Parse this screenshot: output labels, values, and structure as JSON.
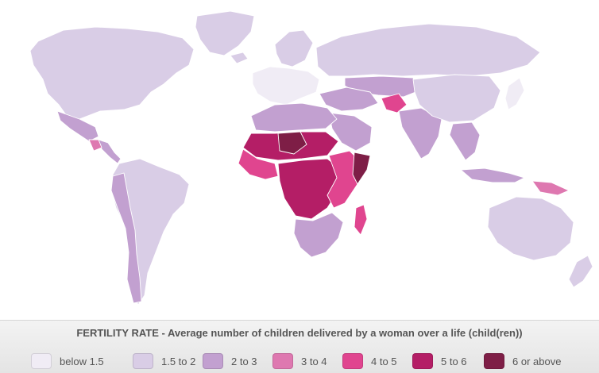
{
  "legend": {
    "title": "FERTILITY RATE - Average number of children delivered by a woman over a life (child(ren))",
    "items": [
      {
        "label": "below 1.5",
        "color": "#f0ecf5"
      },
      {
        "label": "1.5 to 2",
        "color": "#d9cde6"
      },
      {
        "label": "2 to 3",
        "color": "#c2a0d0"
      },
      {
        "label": "3 to 4",
        "color": "#de78b0"
      },
      {
        "label": "4 to 5",
        "color": "#e0458f"
      },
      {
        "label": "5 to 6",
        "color": "#b41e66"
      },
      {
        "label": "6 or above",
        "color": "#7e1e46"
      }
    ]
  },
  "map": {
    "regions": [
      {
        "name": "North America",
        "band": "1.5 to 2"
      },
      {
        "name": "Greenland",
        "band": "1.5 to 2"
      },
      {
        "name": "Mexico",
        "band": "2 to 3"
      },
      {
        "name": "Central America",
        "band": "2 to 3"
      },
      {
        "name": "Guatemala",
        "band": "3 to 4"
      },
      {
        "name": "South America",
        "band": "1.5 to 2"
      },
      {
        "name": "Andes",
        "band": "2 to 3"
      },
      {
        "name": "Iceland",
        "band": "1.5 to 2"
      },
      {
        "name": "Scandinavia",
        "band": "1.5 to 2"
      },
      {
        "name": "Western Europe",
        "band": "below 1.5"
      },
      {
        "name": "Russia",
        "band": "1.5 to 2"
      },
      {
        "name": "Central Asia",
        "band": "2 to 3"
      },
      {
        "name": "Middle East",
        "band": "2 to 3"
      },
      {
        "name": "Arabia",
        "band": "2 to 3"
      },
      {
        "name": "Afghanistan",
        "band": "4 to 5"
      },
      {
        "name": "India",
        "band": "2 to 3"
      },
      {
        "name": "China",
        "band": "1.5 to 2"
      },
      {
        "name": "Southeast Asia",
        "band": "2 to 3"
      },
      {
        "name": "Japan",
        "band": "below 1.5"
      },
      {
        "name": "Indonesia",
        "band": "2 to 3"
      },
      {
        "name": "Papua New Guinea",
        "band": "3 to 4"
      },
      {
        "name": "Australia",
        "band": "1.5 to 2"
      },
      {
        "name": "New Zealand",
        "band": "1.5 to 2"
      },
      {
        "name": "North Africa",
        "band": "2 to 3"
      },
      {
        "name": "Sahel",
        "band": "5 to 6"
      },
      {
        "name": "Niger",
        "band": "6 or above"
      },
      {
        "name": "West Africa",
        "band": "4 to 5"
      },
      {
        "name": "Central Africa",
        "band": "5 to 6"
      },
      {
        "name": "East Africa",
        "band": "4 to 5"
      },
      {
        "name": "Somalia",
        "band": "6 or above"
      },
      {
        "name": "Southern Africa",
        "band": "2 to 3"
      },
      {
        "name": "Madagascar",
        "band": "4 to 5"
      }
    ]
  }
}
